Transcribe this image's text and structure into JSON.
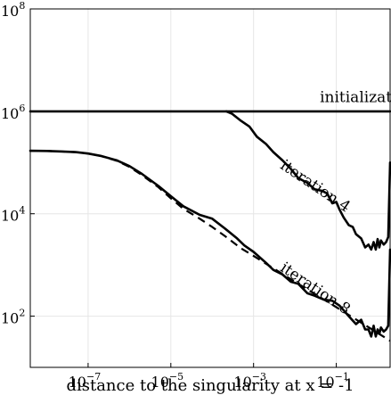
{
  "chart_data": {
    "type": "line",
    "xlabel": "distance to the singularity at x = -1",
    "ylabel": "",
    "title": "",
    "x_scale": "log",
    "y_scale": "log",
    "xlim": [
      4e-09,
      2
    ],
    "ylim": [
      10,
      100000000
    ],
    "grid": true,
    "x_ticks": [
      {
        "value": 1e-07,
        "base": "10",
        "exp": "−7"
      },
      {
        "value": 1e-05,
        "base": "10",
        "exp": "−5"
      },
      {
        "value": 0.001,
        "base": "10",
        "exp": "−3"
      },
      {
        "value": 0.1,
        "base": "10",
        "exp": "−1"
      }
    ],
    "y_ticks": [
      {
        "value": 100,
        "base": "10",
        "exp": "2"
      },
      {
        "value": 10000,
        "base": "10",
        "exp": "4"
      },
      {
        "value": 1000000,
        "base": "10",
        "exp": "6"
      },
      {
        "value": 100000000,
        "base": "10",
        "exp": "8"
      }
    ],
    "series": [
      {
        "name": "initialization",
        "style": "solid",
        "x": [
          4e-09,
          2
        ],
        "y": [
          1000000,
          1000000
        ]
      },
      {
        "name": "iteration 4",
        "style": "solid",
        "x": [
          0.00022,
          0.0003,
          0.0005,
          0.0008,
          0.0012,
          0.002,
          0.003,
          0.005,
          0.008,
          0.012,
          0.02,
          0.03,
          0.045,
          0.06,
          0.08,
          0.1,
          0.12,
          0.15,
          0.2,
          0.25,
          0.3,
          0.4,
          0.5,
          0.6,
          0.7,
          0.8,
          0.9,
          1.0,
          1.1,
          1.2,
          1.4,
          1.6,
          1.8,
          2.0
        ],
        "y": [
          1000000,
          900000,
          650000,
          500000,
          320000,
          230000,
          160000,
          110000,
          75000,
          50000,
          40000,
          30000,
          28000,
          25000,
          16000,
          17000,
          12000,
          8500,
          6000,
          5500,
          4000,
          3300,
          2200,
          2500,
          2000,
          2800,
          2000,
          3200,
          2200,
          3000,
          2500,
          2800,
          3500,
          100000
        ]
      },
      {
        "name": "iteration 8",
        "style": "solid",
        "x": [
          4e-09,
          1e-08,
          2e-08,
          5e-08,
          1e-07,
          2e-07,
          5e-07,
          1e-06,
          2e-06,
          5e-06,
          1e-05,
          2e-05,
          5e-05,
          0.0001,
          0.0002,
          0.0004,
          0.0006,
          0.001,
          0.002,
          0.003,
          0.005,
          0.008,
          0.012,
          0.02,
          0.03,
          0.05,
          0.08,
          0.12,
          0.2,
          0.3,
          0.4,
          0.5,
          0.6,
          0.7,
          0.8,
          0.9,
          1.0,
          1.1,
          1.2,
          1.4,
          1.6,
          1.8,
          2.0
        ],
        "y": [
          170000,
          168000,
          165000,
          160000,
          150000,
          135000,
          110000,
          85000,
          60000,
          35000,
          22000,
          14000,
          9500,
          8000,
          5200,
          3300,
          2400,
          1800,
          1100,
          800,
          650,
          470,
          430,
          280,
          250,
          210,
          200,
          160,
          100,
          70,
          85,
          55,
          55,
          40,
          65,
          40,
          55,
          45,
          60,
          50,
          55,
          65,
          2000
        ]
      },
      {
        "name": "",
        "style": "dashed",
        "x": [
          4e-09,
          1e-08,
          2e-08,
          5e-08,
          1e-07,
          2e-07,
          5e-07,
          1e-06,
          2e-06,
          5e-06,
          1e-05,
          2e-05,
          5e-05,
          0.0001,
          0.0002,
          0.0005,
          0.001,
          0.01,
          0.1,
          1,
          2
        ],
        "y": [
          170000,
          168000,
          165000,
          160000,
          150000,
          135000,
          108000,
          82000,
          57000,
          33000,
          20000,
          12500,
          8000,
          5500,
          3700,
          2100,
          1500,
          470,
          150,
          47,
          33
        ]
      }
    ],
    "annotations": [
      {
        "text": "initialization",
        "x": 0.04,
        "y": 1500000,
        "rotation": 0
      },
      {
        "text": "iteration 4",
        "x": 0.0042,
        "y": 80000,
        "rotation": 34
      },
      {
        "text": "iteration 8",
        "x": 0.0042,
        "y": 800,
        "rotation": 34
      }
    ]
  }
}
